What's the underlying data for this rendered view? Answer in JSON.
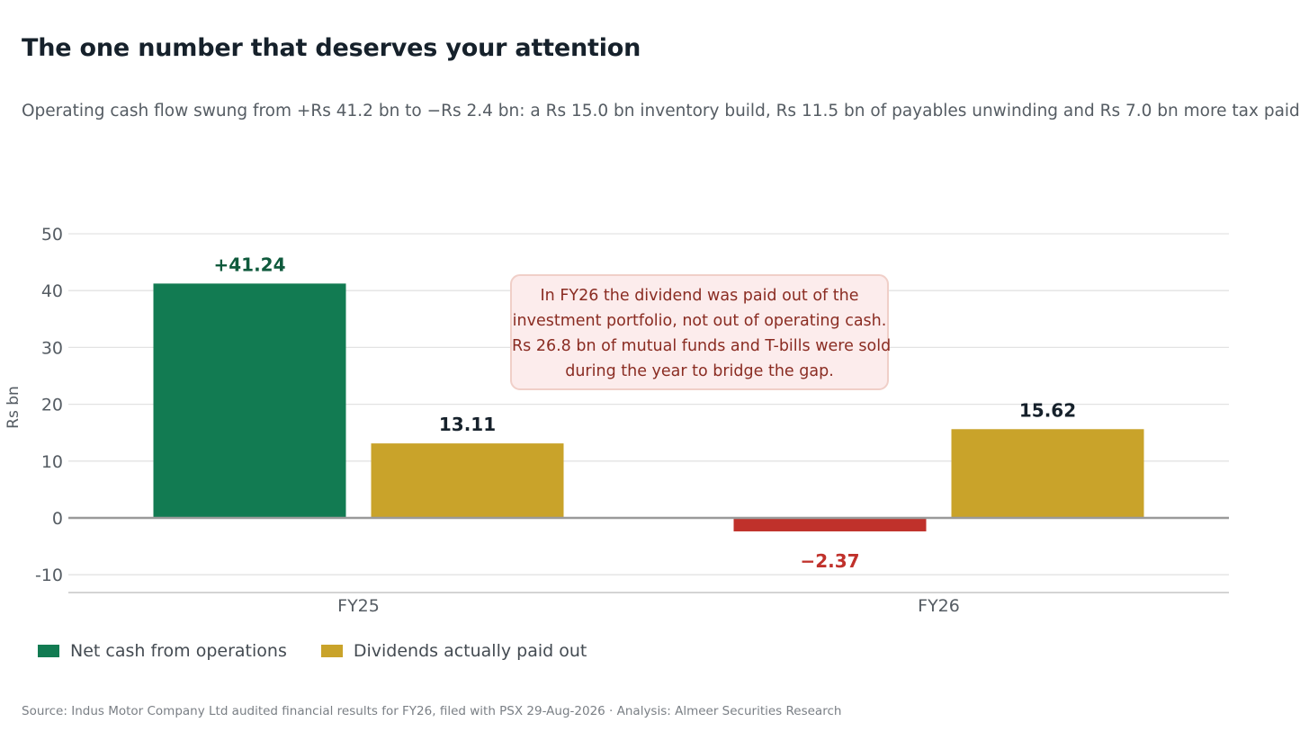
{
  "title": "The one number that deserves your attention",
  "subtitle": "Operating cash flow swung from +Rs 41.2 bn to −Rs 2.4 bn: a Rs 15.0 bn inventory build, Rs 11.5 bn of payables unwinding and Rs 7.0 bn more tax paid",
  "annotation": {
    "lines": [
      "In FY26 the dividend was paid out of the",
      "investment portfolio, not out of operating cash.",
      "Rs 26.8 bn of mutual funds and T-bills were sold",
      "during the year to bridge the gap."
    ]
  },
  "legend": [
    {
      "label": "Net cash from operations",
      "color": "#127b52"
    },
    {
      "label": "Dividends actually paid out",
      "color": "#c9a32a"
    }
  ],
  "source": "Source: Indus Motor Company Ltd audited financial results for FY26, filed with PSX 29-Aug-2026  ·  Analysis: Almeer Securities Research",
  "chart_data": {
    "type": "bar",
    "categories": [
      "FY25",
      "FY26"
    ],
    "series": [
      {
        "name": "Net cash from operations",
        "values": [
          41.24,
          -2.37
        ],
        "labels": [
          "+41.24",
          "−2.37"
        ],
        "colors": [
          "#127b52",
          "#c0312b"
        ],
        "label_colors": [
          "#0f5a3c",
          "#c0312b"
        ]
      },
      {
        "name": "Dividends actually paid out",
        "values": [
          13.11,
          15.62
        ],
        "labels": [
          "13.11",
          "15.62"
        ],
        "colors": [
          "#c9a32a",
          "#c9a32a"
        ],
        "label_colors": [
          "#16212b",
          "#16212b"
        ]
      }
    ],
    "ylabel": "Rs bn",
    "ylim": [
      -13,
      50
    ],
    "yticks": [
      50,
      40,
      30,
      20,
      10,
      0,
      -10
    ],
    "grid": true,
    "legend_position": "bottom-left"
  }
}
